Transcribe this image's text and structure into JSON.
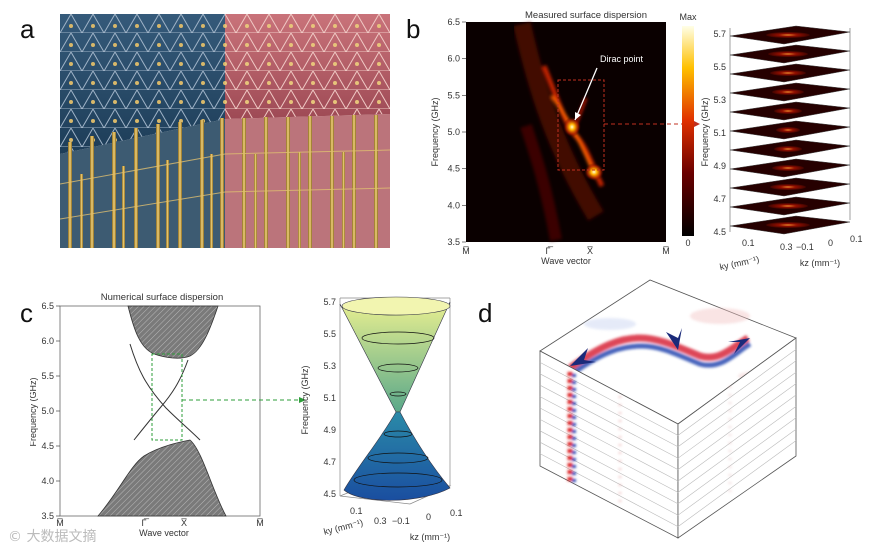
{
  "panels": {
    "a": {
      "letter": "a"
    },
    "b": {
      "letter": "b",
      "title": "Measured surface dispersion",
      "ylabel": "Frequency (GHz)",
      "xlabel": "Wave vector",
      "yticks": [
        "6.5",
        "6.0",
        "5.5",
        "5.0",
        "4.5",
        "4.0",
        "3.5"
      ],
      "xticks": [
        "M̅",
        "Γ̅",
        "X̅",
        "M̅"
      ],
      "colorbar": {
        "max_label": "Max",
        "min_label": "0"
      },
      "annotation": "Dirac point",
      "stack": {
        "ylabel": "Frequency (GHz)",
        "zticks": [
          "5.7",
          "5.5",
          "5.3",
          "5.1",
          "4.9",
          "4.7",
          "4.5"
        ],
        "ky_label": "ky (mm⁻¹)",
        "kz_label": "kz (mm⁻¹)",
        "ky_ticks": [
          "0.1",
          "0.3"
        ],
        "kz_ticks": [
          "−0.1",
          "0",
          "0.1"
        ]
      }
    },
    "c": {
      "letter": "c",
      "title": "Numerical surface dispersion",
      "ylabel": "Frequency (GHz)",
      "xlabel": "Wave vector",
      "yticks": [
        "6.5",
        "6.0",
        "5.5",
        "5.0",
        "4.5",
        "4.0",
        "3.5"
      ],
      "xticks": [
        "M̅",
        "Γ̅",
        "X̅",
        "M̅"
      ],
      "cone": {
        "ylabel": "Frequency (GHz)",
        "zticks": [
          "5.7",
          "5.5",
          "5.3",
          "5.1",
          "4.9",
          "4.7",
          "4.5"
        ],
        "ky_label": "ky (mm⁻¹)",
        "kz_label": "kz (mm⁻¹)",
        "ky_ticks": [
          "0.1",
          "0.3"
        ],
        "kz_ticks": [
          "−0.1",
          "0",
          "0.1"
        ]
      }
    },
    "d": {
      "letter": "d"
    }
  },
  "watermark": "大数据文摘"
}
